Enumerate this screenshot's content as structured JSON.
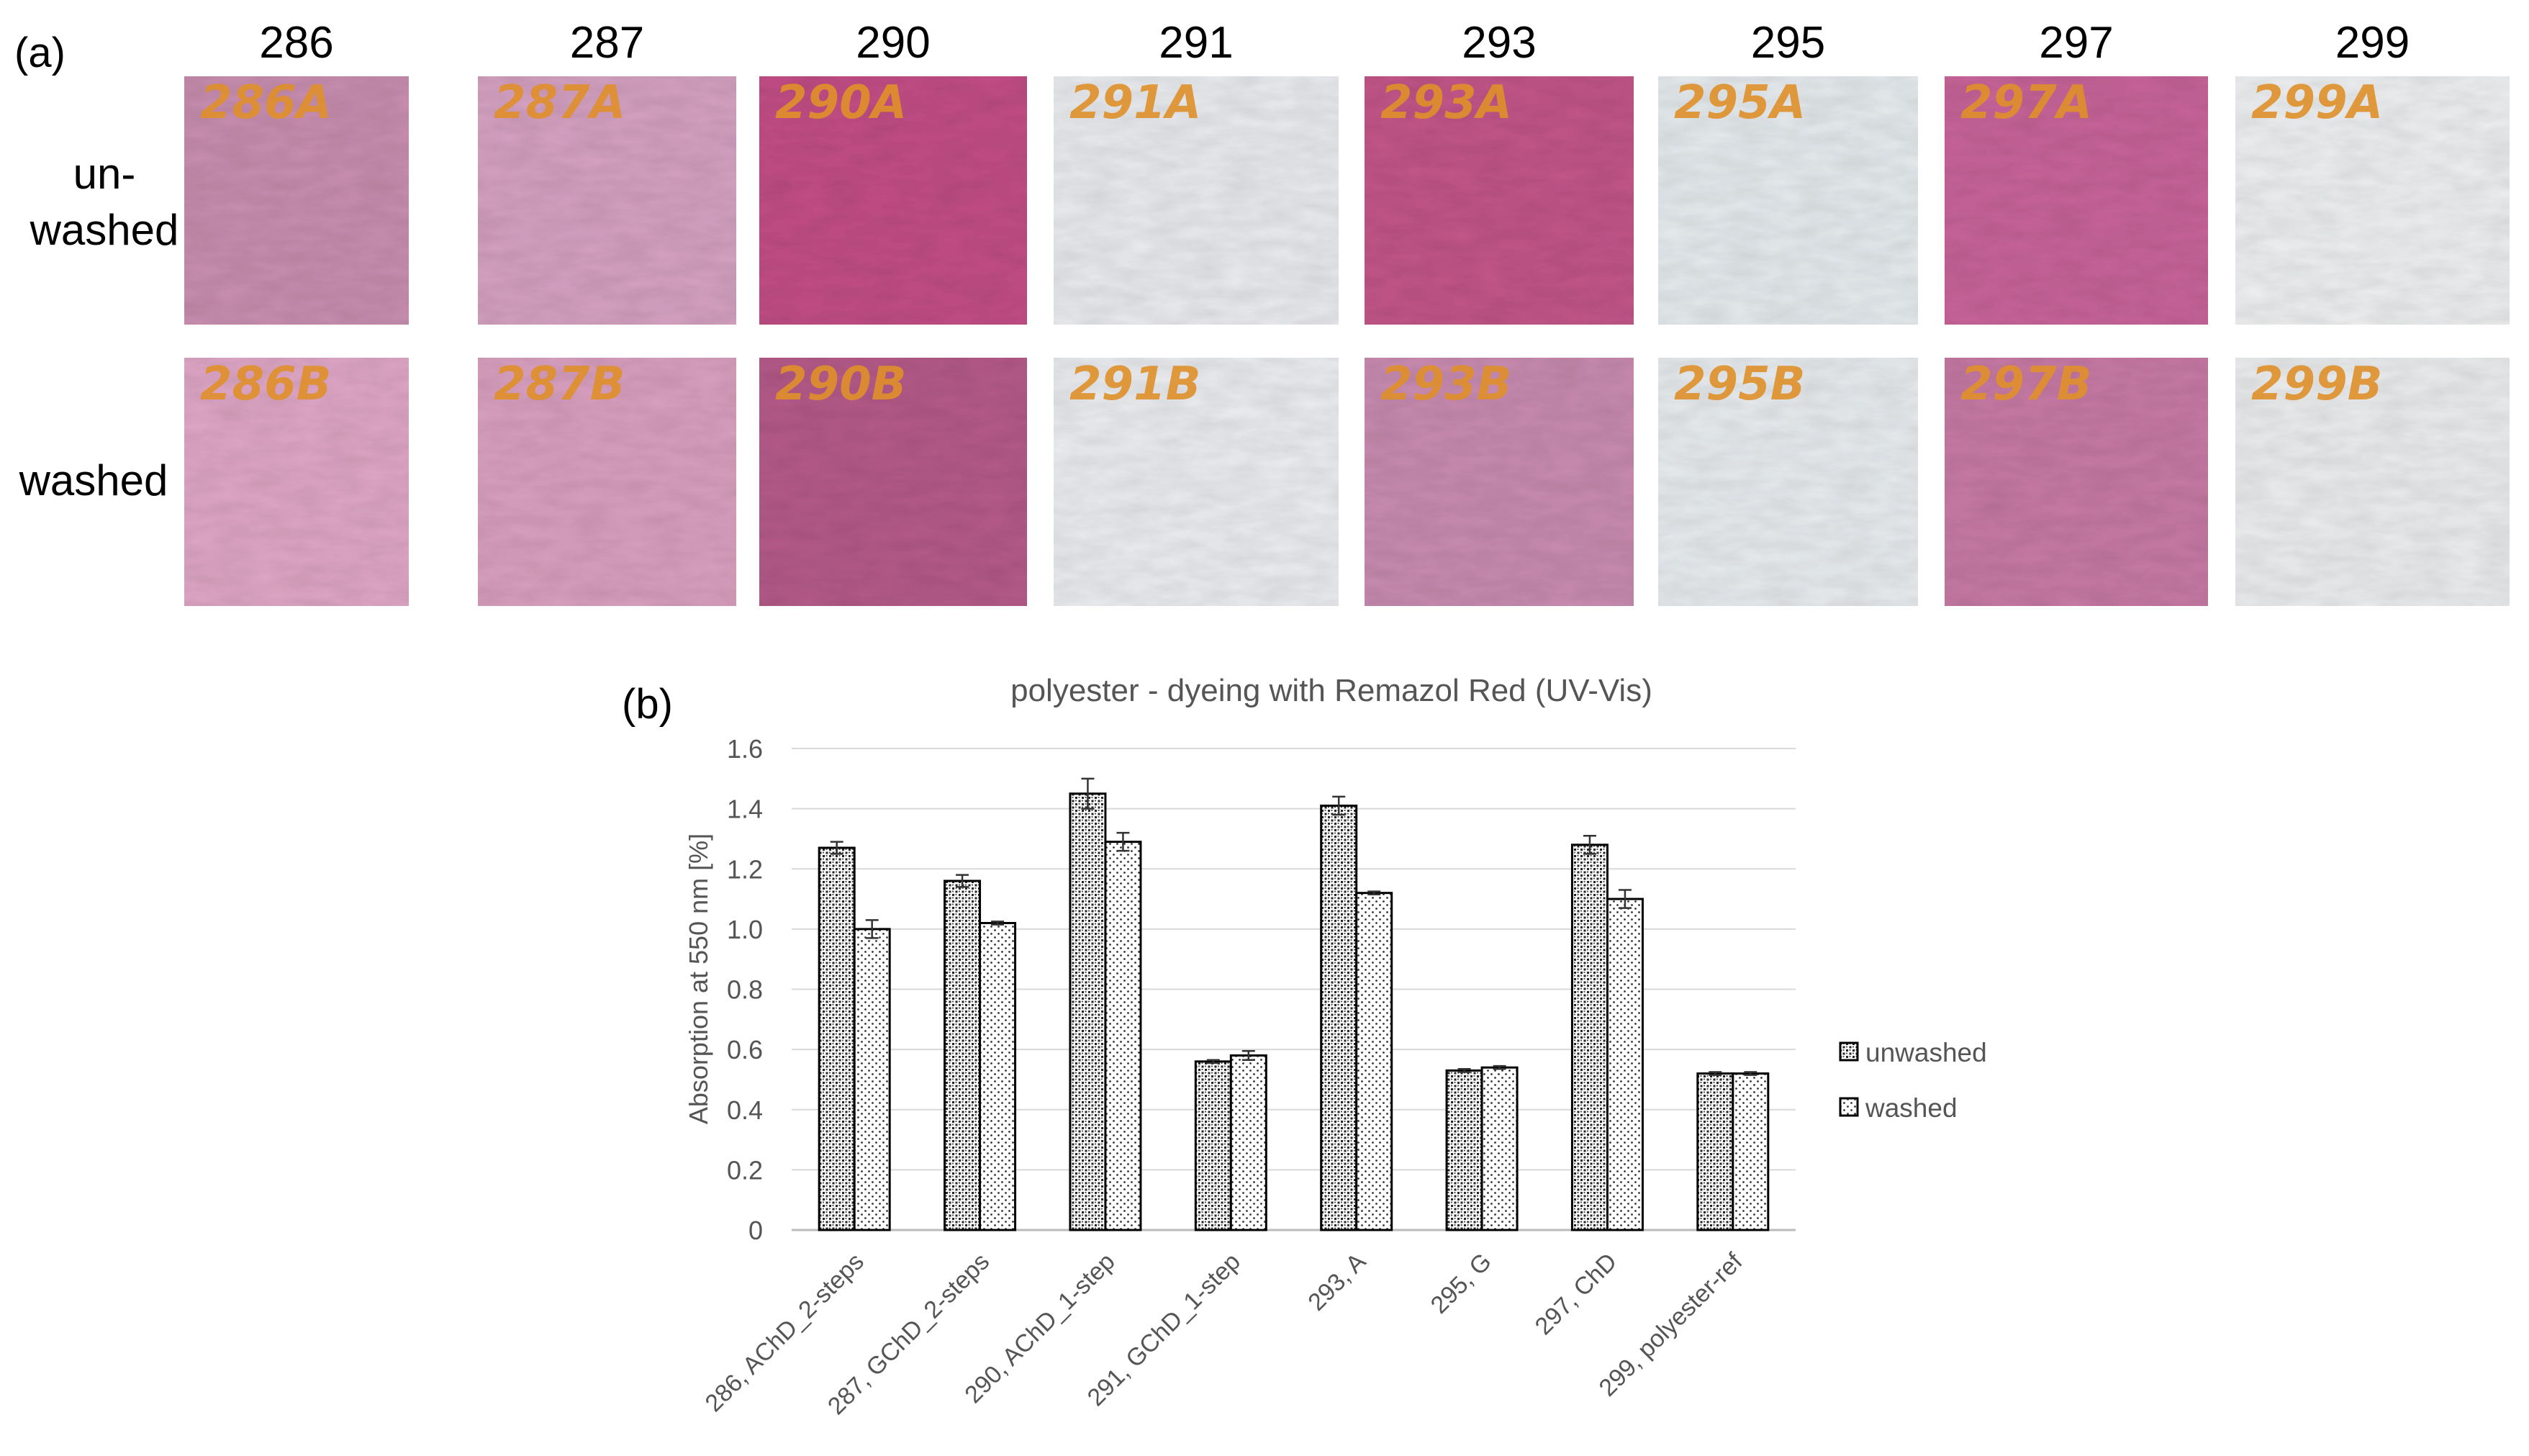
{
  "panel_a": {
    "label": "(a)",
    "row_labels": {
      "unwashed": "un-\nwashed",
      "washed": "washed"
    },
    "samples": [
      {
        "id": "286",
        "unwashed_tag": "286A",
        "washed_tag": "286B",
        "unwashed_color": "#c98fb0",
        "washed_color": "#dfa7c6"
      },
      {
        "id": "287",
        "unwashed_tag": "287A",
        "washed_tag": "287B",
        "unwashed_color": "#d6a2c2",
        "washed_color": "#d9a0c0"
      },
      {
        "id": "290",
        "unwashed_tag": "290A",
        "washed_tag": "290B",
        "unwashed_color": "#c24f86",
        "washed_color": "#b65c8a"
      },
      {
        "id": "291",
        "unwashed_tag": "291A",
        "washed_tag": "291B",
        "unwashed_color": "#e9ebee",
        "washed_color": "#ebedf0"
      },
      {
        "id": "293",
        "unwashed_tag": "293A",
        "washed_tag": "293B",
        "unwashed_color": "#c3568a",
        "washed_color": "#c98cb1"
      },
      {
        "id": "295",
        "unwashed_tag": "295A",
        "washed_tag": "295B",
        "unwashed_color": "#e6ebee",
        "washed_color": "#e8ecef"
      },
      {
        "id": "297",
        "unwashed_tag": "297A",
        "washed_tag": "297B",
        "unwashed_color": "#c8659a",
        "washed_color": "#c77aa5"
      },
      {
        "id": "299",
        "unwashed_tag": "299A",
        "washed_tag": "299B",
        "unwashed_color": "#eef0f1",
        "washed_color": "#ecedee"
      }
    ],
    "tag_color": "#e0902a"
  },
  "chart_data": {
    "panel_label": "(b)",
    "type": "bar",
    "title": "polyester - dyeing with Remazol Red (UV-Vis)",
    "xlabel": "",
    "ylabel": "Absorption at 550 nm [%]",
    "ylim": [
      0,
      1.6
    ],
    "yticks": [
      0,
      0.2,
      0.4,
      0.6,
      0.8,
      1.0,
      1.2,
      1.4,
      1.6
    ],
    "ytick_labels": [
      "0",
      "0.2",
      "0.4",
      "0.6",
      "0.8",
      "1.0",
      "1.2",
      "1.4",
      "1.6"
    ],
    "grid": true,
    "legend_position": "right",
    "categories": [
      "286, AChD_2-steps",
      "287, GChD_2-steps",
      "290, AChD_1-step",
      "291, GChD_1-step",
      "293, A",
      "295, G",
      "297, ChD",
      "299, polyester-ref"
    ],
    "series": [
      {
        "name": "unwashed",
        "values": [
          1.27,
          1.16,
          1.45,
          0.56,
          1.41,
          0.53,
          1.28,
          0.52
        ],
        "errors": [
          0.02,
          0.02,
          0.05,
          0.005,
          0.03,
          0.005,
          0.03,
          0.005
        ]
      },
      {
        "name": "washed",
        "values": [
          1.0,
          1.02,
          1.29,
          0.58,
          1.12,
          0.54,
          1.1,
          0.52
        ],
        "errors": [
          0.03,
          0.005,
          0.03,
          0.015,
          0.005,
          0.005,
          0.03,
          0.005
        ]
      }
    ]
  }
}
